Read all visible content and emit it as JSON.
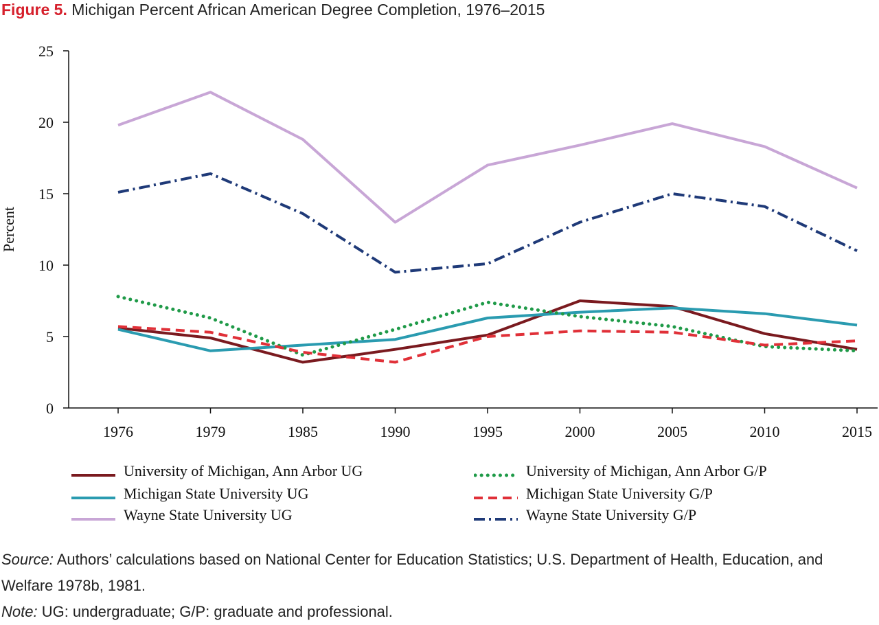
{
  "figure": {
    "label": "Figure 5.",
    "title": "Michigan Percent African American Degree Completion, 1976–2015"
  },
  "chart_data": {
    "type": "line",
    "title": "Michigan Percent African American Degree Completion, 1976–2015",
    "xlabel": "",
    "ylabel": "Percent",
    "categories": [
      "1976",
      "1979",
      "1985",
      "1990",
      "1995",
      "2000",
      "2005",
      "2010",
      "2015"
    ],
    "ylim": [
      0,
      25
    ],
    "yticks": [
      "0",
      "5",
      "10",
      "15",
      "20",
      "25"
    ],
    "grid": false,
    "legend_position": "bottom",
    "series": [
      {
        "name": "University of Michigan, Ann Arbor UG",
        "color": "#7a1a1f",
        "style": "solid",
        "values": [
          5.6,
          4.9,
          3.2,
          4.1,
          5.1,
          7.5,
          7.1,
          5.2,
          4.1
        ]
      },
      {
        "name": "Michigan State University UG",
        "color": "#2a9bb0",
        "style": "solid",
        "values": [
          5.5,
          4.0,
          4.4,
          4.8,
          6.3,
          6.7,
          7.0,
          6.6,
          5.8
        ]
      },
      {
        "name": "Wayne State University UG",
        "color": "#c8a6d6",
        "style": "solid",
        "values": [
          19.8,
          22.1,
          18.8,
          13.0,
          17.0,
          18.4,
          19.9,
          18.3,
          15.4
        ]
      },
      {
        "name": "University of Michigan, Ann Arbor G/P",
        "color": "#1f9a48",
        "style": "dotted",
        "values": [
          7.8,
          6.3,
          3.7,
          5.5,
          7.4,
          6.4,
          5.7,
          4.3,
          4.0
        ]
      },
      {
        "name": "Michigan State University G/P",
        "color": "#e03038",
        "style": "dashed",
        "values": [
          5.7,
          5.3,
          3.9,
          3.2,
          5.0,
          5.4,
          5.3,
          4.4,
          4.7
        ]
      },
      {
        "name": "Wayne State University G/P",
        "color": "#1f3a78",
        "style": "dashdot",
        "values": [
          15.1,
          16.4,
          13.6,
          9.5,
          10.1,
          13.0,
          15.0,
          14.1,
          11.0
        ]
      }
    ]
  },
  "legend": [
    {
      "label": "University of Michigan, Ann Arbor UG"
    },
    {
      "label": "University of Michigan, Ann Arbor G/P"
    },
    {
      "label": "Michigan State University UG"
    },
    {
      "label": "Michigan State University G/P"
    },
    {
      "label": "Wayne State University UG"
    },
    {
      "label": "Wayne State University G/P"
    }
  ],
  "notes": {
    "source_label": "Source:",
    "source_text": " Authors’ calculations based on National Center for Education Statistics; U.S. Department of Health, Education, and Welfare 1978b, 1981.",
    "note_label": "Note:",
    "note_text": " UG: undergraduate; G/P: graduate and professional."
  }
}
